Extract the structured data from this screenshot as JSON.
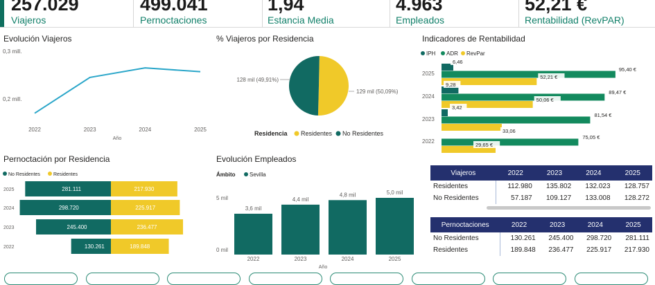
{
  "kpis": [
    {
      "value": "257.029",
      "label": "Viajeros"
    },
    {
      "value": "499.041",
      "label": "Pernoctaciones"
    },
    {
      "value": "1,94",
      "label": "Estancia Media"
    },
    {
      "value": "4.963",
      "label": "Empleados"
    },
    {
      "value": "52,21 €",
      "label": "Rentabilidad (RevPAR)"
    }
  ],
  "colors": {
    "teal": "#116a62",
    "yellow": "#f0c929",
    "green": "#138a5e",
    "line": "#2aa6c9",
    "navy": "#24306e"
  },
  "chart_data": [
    {
      "type": "line",
      "title": "Evolución Viajeros",
      "xlabel": "Año",
      "x": [
        "2022",
        "2023",
        "2024",
        "2025"
      ],
      "values": [
        0.17,
        0.245,
        0.265,
        0.257
      ],
      "y_ticks": [
        "0,3 mill.",
        "0,2 mill."
      ],
      "ylim": [
        0.15,
        0.3
      ]
    },
    {
      "type": "pie",
      "title": "% Viajeros por Residencia",
      "legend_title": "Residencia",
      "slices": [
        {
          "name": "Residentes",
          "value": 50.09,
          "label": "129 mil (50,09%)",
          "color": "#f0c929"
        },
        {
          "name": "No Residentes",
          "value": 49.91,
          "label": "128 mil (49,91%)",
          "color": "#116a62"
        }
      ]
    },
    {
      "type": "bar",
      "title": "Indicadores de Rentabilidad",
      "orientation": "horizontal",
      "categories": [
        "2025",
        "2024",
        "2023",
        "2022"
      ],
      "series": [
        {
          "name": "IPH",
          "values": [
            6.46,
            9.28,
            3.42,
            null
          ],
          "labels": [
            "6,46",
            "9,28",
            "3,42",
            ""
          ],
          "color": "#116a62"
        },
        {
          "name": "ADR",
          "values": [
            95.4,
            89.47,
            81.54,
            75.05
          ],
          "labels": [
            "95,40 €",
            "89,47 €",
            "81,54 €",
            "75,05 €"
          ],
          "color": "#138a5e"
        },
        {
          "name": "RevPar",
          "values": [
            52.21,
            50.06,
            33.06,
            29.65
          ],
          "labels": [
            "52,21 €",
            "50,06 €",
            "33,06",
            "29,65 €"
          ],
          "color": "#f0c929"
        }
      ],
      "xlim": [
        0,
        100
      ]
    },
    {
      "type": "bar",
      "title": "Pernoctación por Residencia",
      "orientation": "butterfly",
      "categories": [
        "2025",
        "2024",
        "2023",
        "2022"
      ],
      "series": [
        {
          "name": "No Residentes",
          "values": [
            281111,
            298720,
            245400,
            130261
          ],
          "labels": [
            "281.111",
            "298.720",
            "245.400",
            "130.261"
          ],
          "color": "#116a62"
        },
        {
          "name": "Residentes",
          "values": [
            217930,
            225917,
            236477,
            189848
          ],
          "labels": [
            "217.930",
            "225.917",
            "236.477",
            "189.848"
          ],
          "color": "#f0c929"
        }
      ]
    },
    {
      "type": "bar",
      "title": "Evolución Empleados",
      "legend_title": "Ámbito",
      "series_name": "Sevilla",
      "xlabel": "Año",
      "categories": [
        "2022",
        "2023",
        "2024",
        "2025"
      ],
      "values": [
        3.6,
        4.4,
        4.8,
        5.0
      ],
      "labels": [
        "3,6 mil",
        "4,4 mil",
        "4,8 mil",
        "5,0 mil"
      ],
      "y_ticks": [
        "5 mil",
        "0 mil"
      ],
      "ylim": [
        0,
        6
      ]
    }
  ],
  "viajeros_table": {
    "header": [
      "Viajeros",
      "2022",
      "2023",
      "2024",
      "2025"
    ],
    "rows": [
      [
        "Residentes",
        "112.980",
        "135.802",
        "132.023",
        "128.757"
      ],
      [
        "No Residentes",
        "57.187",
        "109.127",
        "133.008",
        "128.272"
      ]
    ]
  },
  "pernoctaciones_table": {
    "header": [
      "Pernoctaciones",
      "2022",
      "2023",
      "2024",
      "2025"
    ],
    "rows": [
      [
        "No Residentes",
        "130.261",
        "245.400",
        "298.720",
        "281.111"
      ],
      [
        "Residentes",
        "189.848",
        "236.477",
        "225.917",
        "217.930"
      ]
    ]
  }
}
